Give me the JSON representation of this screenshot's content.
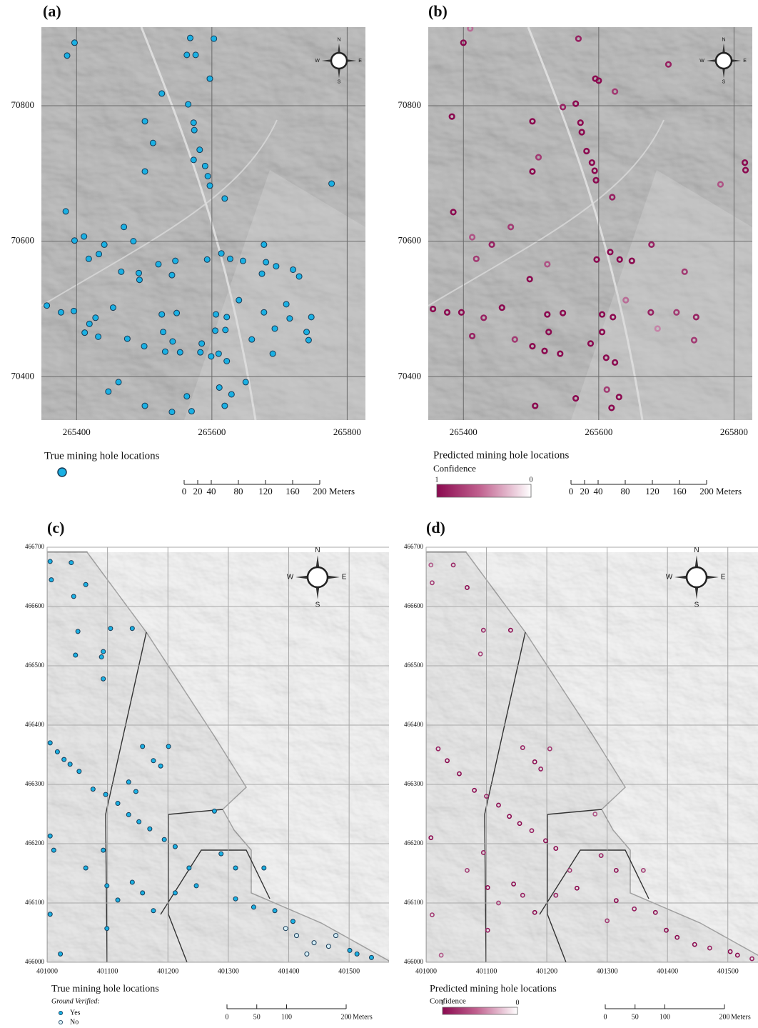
{
  "panels": [
    {
      "label": "(a)",
      "kind": "true",
      "xlim": [
        265348,
        265827
      ],
      "ylim": [
        70336,
        70916
      ],
      "xticks": [
        265400,
        265600,
        265800
      ],
      "yticks": [
        70400,
        70600,
        70800
      ],
      "compass": [
        "N",
        "E",
        "S",
        "W"
      ],
      "legend_title": "True mining hole locations",
      "scale_ticks": [
        0,
        20,
        40,
        80,
        120,
        160,
        200
      ],
      "scale_unit": "Meters",
      "point_color": "#1ab0e3",
      "points": {
        "x": [
          265397,
          265386,
          265568,
          265603,
          265563,
          265576,
          265597,
          265526,
          265565,
          265501,
          265573,
          265574,
          265513,
          265582,
          265573,
          265590,
          265594,
          265597,
          265501,
          265619,
          265384,
          265470,
          265397,
          265411,
          265441,
          265418,
          265433,
          265484,
          265466,
          265521,
          265492,
          265493,
          265546,
          265541,
          265593,
          265614,
          265627,
          265646,
          265677,
          265680,
          265695,
          265720,
          265729,
          265674,
          265356,
          265377,
          265396,
          265454,
          265419,
          265428,
          265432,
          265412,
          265475,
          265526,
          265548,
          265528,
          265606,
          265622,
          265605,
          265620,
          265640,
          265677,
          265710,
          265715,
          265693,
          265740,
          265747,
          265743,
          265659,
          265690,
          265500,
          265531,
          265542,
          265553,
          265583,
          265585,
          265599,
          265610,
          265622,
          265462,
          265447,
          265650,
          265501,
          265541,
          265570,
          265563,
          265611,
          265619,
          265629,
          265777
        ],
        "y": [
          70893,
          70874,
          70900,
          70899,
          70875,
          70875,
          70840,
          70818,
          70802,
          70777,
          70775,
          70764,
          70745,
          70735,
          70720,
          70711,
          70696,
          70682,
          70703,
          70663,
          70644,
          70621,
          70601,
          70607,
          70595,
          70574,
          70581,
          70600,
          70555,
          70566,
          70553,
          70543,
          70571,
          70550,
          70573,
          70582,
          70574,
          70571,
          70595,
          70569,
          70563,
          70558,
          70548,
          70552,
          70505,
          70495,
          70497,
          70502,
          70478,
          70487,
          70459,
          70465,
          70456,
          70492,
          70494,
          70466,
          70492,
          70488,
          70468,
          70469,
          70513,
          70495,
          70507,
          70486,
          70471,
          70466,
          70488,
          70454,
          70455,
          70434,
          70445,
          70437,
          70452,
          70436,
          70436,
          70449,
          70430,
          70434,
          70423,
          70392,
          70378,
          70392,
          70357,
          70348,
          70349,
          70371,
          70384,
          70357,
          70374,
          70685
        ]
      }
    },
    {
      "label": "(b)",
      "kind": "predicted",
      "xlim": [
        265348,
        265827
      ],
      "ylim": [
        70336,
        70916
      ],
      "xticks": [
        265400,
        265600,
        265800
      ],
      "yticks": [
        70400,
        70600,
        70800
      ],
      "compass": [
        "N",
        "E",
        "S",
        "W"
      ],
      "legend_title": "Predicted mining hole locations",
      "colorbar_title": "Confidence",
      "colorbar_ticks": [
        1,
        0
      ],
      "scale_ticks": [
        0,
        20,
        40,
        80,
        120,
        160,
        200
      ],
      "scale_unit": "Meters",
      "point_color": "#8b0a50",
      "points": {
        "x": [
          265410,
          265400,
          265383,
          265570,
          265595,
          265600,
          265566,
          265547,
          265502,
          265573,
          265575,
          265511,
          265582,
          265590,
          265594,
          265596,
          265502,
          265620,
          265385,
          265470,
          265413,
          265442,
          265419,
          265498,
          265524,
          265597,
          265617,
          265631,
          265649,
          265678,
          265727,
          265355,
          265376,
          265397,
          265457,
          265430,
          265413,
          265476,
          265524,
          265547,
          265526,
          265605,
          265621,
          265605,
          265640,
          265677,
          265715,
          265744,
          265741,
          265687,
          265502,
          265520,
          265543,
          265588,
          265611,
          265624,
          265566,
          265612,
          265619,
          265630,
          265506,
          265816,
          265817,
          265780,
          265703,
          265624
        ],
        "y": [
          70914,
          70893,
          70784,
          70899,
          70840,
          70837,
          70803,
          70798,
          70777,
          70775,
          70761,
          70724,
          70733,
          70716,
          70704,
          70690,
          70703,
          70665,
          70643,
          70621,
          70606,
          70595,
          70574,
          70544,
          70566,
          70573,
          70584,
          70573,
          70571,
          70595,
          70555,
          70500,
          70495,
          70495,
          70502,
          70487,
          70460,
          70455,
          70492,
          70494,
          70466,
          70492,
          70488,
          70466,
          70513,
          70495,
          70495,
          70488,
          70454,
          70471,
          70445,
          70438,
          70434,
          70449,
          70428,
          70421,
          70368,
          70381,
          70354,
          70370,
          70357,
          70716,
          70705,
          70684,
          70861,
          70821
        ],
        "confidence": [
          0.6,
          1,
          1,
          0.9,
          1,
          1,
          1,
          0.9,
          1,
          1,
          1,
          0.8,
          1,
          1,
          1,
          1,
          1,
          0.9,
          1,
          0.8,
          0.7,
          0.9,
          0.8,
          1,
          0.7,
          1,
          1,
          1,
          1,
          0.9,
          0.8,
          1,
          1,
          1,
          1,
          0.9,
          0.9,
          0.8,
          1,
          1,
          1,
          1,
          1,
          1,
          0.6,
          0.9,
          0.8,
          0.9,
          0.8,
          0.5,
          1,
          1,
          1,
          1,
          1,
          1,
          1,
          0.8,
          1,
          1,
          1,
          1,
          1,
          0.7,
          0.9,
          0.8
        ]
      }
    },
    {
      "label": "(c)",
      "kind": "true",
      "xlim": [
        401000,
        401566
      ],
      "ylim": [
        466000,
        466700
      ],
      "xticks": [
        401000,
        401100,
        401200,
        401300,
        401400,
        401500
      ],
      "yticks": [
        466000,
        466100,
        466200,
        466300,
        466400,
        466500,
        466600,
        466700
      ],
      "compass": [
        "N",
        "E",
        "S",
        "W"
      ],
      "legend_title": "True mining hole locations",
      "legend_subtitle": "Ground Verified:",
      "legend_entries": [
        "Yes",
        "No"
      ],
      "scale_ticks": [
        0,
        50,
        100,
        200
      ],
      "scale_unit": "Meters",
      "point_color": "#1ab0e3",
      "unverified_color": "#d6eff8",
      "points": {
        "x": [
          401005,
          401007,
          401040,
          401064,
          401044,
          401051,
          401105,
          401093,
          401090,
          401141,
          401047,
          401093,
          401005,
          401017,
          401028,
          401038,
          401053,
          401076,
          401097,
          401117,
          401135,
          401152,
          401170,
          401194,
          401212,
          401158,
          401176,
          401201,
          401135,
          401147,
          401188,
          401005,
          401011,
          401093,
          401064,
          401099,
          401141,
          401158,
          401117,
          401176,
          401212,
          401235,
          401247,
          401277,
          401288,
          401312,
          401359,
          401312,
          401342,
          401377,
          401395,
          401413,
          401442,
          401466,
          401501,
          401513,
          401537,
          401430,
          401005,
          401022,
          401099,
          401407,
          401478
        ],
        "y": [
          466676,
          466645,
          466674,
          466637,
          466617,
          466558,
          466563,
          466524,
          466515,
          466563,
          466518,
          466478,
          466370,
          466355,
          466342,
          466334,
          466322,
          466292,
          466283,
          466268,
          466249,
          466237,
          466225,
          466207,
          466195,
          466364,
          466340,
          466364,
          466304,
          466288,
          466331,
          466213,
          466189,
          466189,
          466159,
          466129,
          466135,
          466117,
          466105,
          466087,
          466117,
          466159,
          466129,
          466255,
          466183,
          466159,
          466159,
          466107,
          466093,
          466087,
          466057,
          466045,
          466033,
          466027,
          466020,
          466014,
          466008,
          466014,
          466081,
          466014,
          466057,
          466069,
          466045
        ],
        "verified": [
          true,
          true,
          true,
          true,
          true,
          true,
          true,
          true,
          true,
          true,
          true,
          true,
          true,
          true,
          true,
          true,
          true,
          true,
          true,
          true,
          true,
          true,
          true,
          true,
          true,
          true,
          true,
          true,
          true,
          true,
          true,
          true,
          true,
          true,
          true,
          true,
          true,
          true,
          true,
          true,
          true,
          true,
          true,
          true,
          true,
          true,
          true,
          true,
          true,
          true,
          false,
          false,
          false,
          false,
          true,
          true,
          true,
          false,
          true,
          true,
          true,
          true,
          false
        ]
      }
    },
    {
      "label": "(d)",
      "kind": "predicted",
      "xlim": [
        401000,
        401550
      ],
      "ylim": [
        466000,
        466700
      ],
      "xticks": [
        401000,
        401100,
        401200,
        401300,
        401400,
        401500
      ],
      "yticks": [
        466000,
        466100,
        466200,
        466300,
        466400,
        466500,
        466600,
        466700
      ],
      "compass": [
        "N",
        "E",
        "S",
        "W"
      ],
      "legend_title": "Predicted mining hole locations",
      "colorbar_title": "Confidence",
      "colorbar_ticks": [
        1,
        0
      ],
      "scale_ticks": [
        0,
        50,
        100,
        200
      ],
      "scale_unit": "Meters",
      "point_color": "#8b0a50",
      "points": {
        "x": [
          401008,
          401010,
          401045,
          401068,
          401095,
          401140,
          401090,
          401020,
          401035,
          401055,
          401080,
          401100,
          401120,
          401138,
          401155,
          401175,
          401198,
          401215,
          401160,
          401180,
          401205,
          401190,
          401008,
          401095,
          401068,
          401102,
          401145,
          401160,
          401120,
          401180,
          401215,
          401238,
          401250,
          401280,
          401290,
          401315,
          401360,
          401315,
          401345,
          401380,
          401398,
          401416,
          401445,
          401470,
          401504,
          401516,
          401540,
          401010,
          401025,
          401102,
          401300
        ],
        "y": [
          466670,
          466640,
          466670,
          466632,
          466560,
          466560,
          466520,
          466360,
          466340,
          466318,
          466290,
          466280,
          466265,
          466246,
          466234,
          466222,
          466205,
          466192,
          466362,
          466338,
          466360,
          466326,
          466210,
          466185,
          466155,
          466126,
          466132,
          466113,
          466100,
          466084,
          466113,
          466155,
          466125,
          466250,
          466180,
          466155,
          466155,
          466104,
          466090,
          466084,
          466054,
          466042,
          466030,
          466024,
          466018,
          466012,
          466006,
          466080,
          466012,
          466054,
          466070
        ],
        "confidence": [
          0.7,
          0.8,
          0.9,
          1,
          0.9,
          1,
          0.8,
          0.9,
          1,
          1,
          1,
          0.9,
          1,
          1,
          1,
          0.9,
          1,
          1,
          0.9,
          1,
          0.8,
          0.9,
          1,
          0.9,
          0.8,
          1,
          1,
          0.9,
          0.8,
          1,
          0.9,
          0.8,
          1,
          0.7,
          0.9,
          1,
          0.8,
          1,
          0.9,
          1,
          1,
          1,
          1,
          0.9,
          1,
          1,
          0.9,
          0.8,
          0.7,
          0.9,
          0.8
        ]
      }
    }
  ]
}
